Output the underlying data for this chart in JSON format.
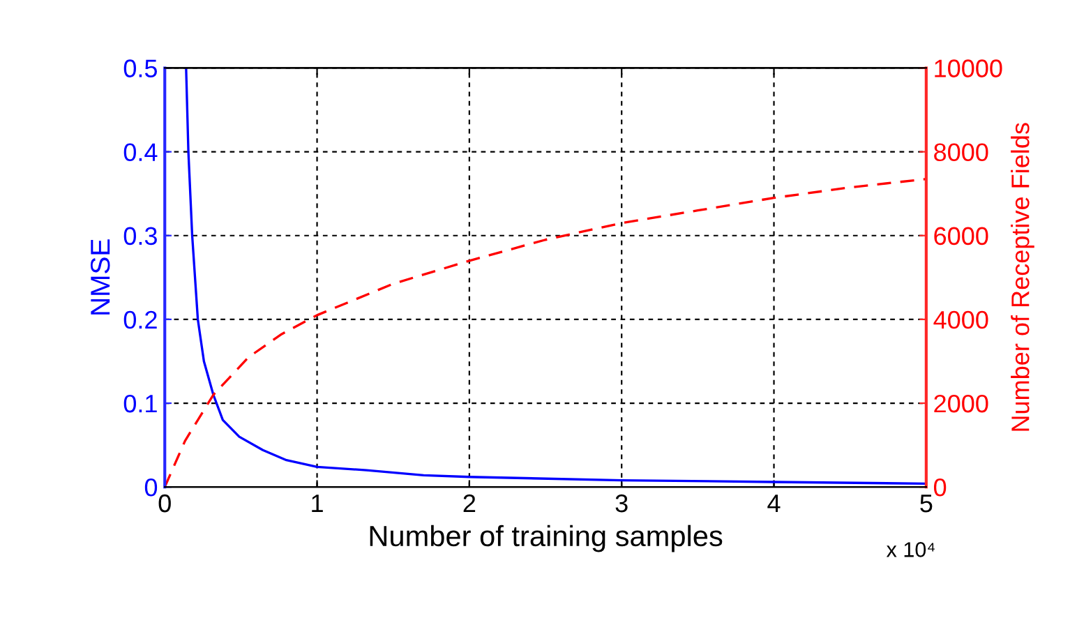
{
  "chart_data": {
    "type": "line",
    "xlabel": "Number of training samples",
    "ylabel": "NMSE",
    "y2label": "Number of Receptive Fields",
    "xlim": [
      0,
      5
    ],
    "xticks": [
      0,
      1,
      2,
      3,
      4,
      5
    ],
    "ylim": [
      0,
      0.5
    ],
    "yticks": [
      0,
      0.1,
      0.2,
      0.3,
      0.4,
      0.5
    ],
    "y2lim": [
      0,
      10000
    ],
    "y2ticks": [
      0,
      2000,
      4000,
      6000,
      8000,
      10000
    ],
    "grid": true,
    "line_style": "solid",
    "annotations": [
      "x 10⁴"
    ],
    "series": [
      {
        "color": "#0000ff",
        "x": [
          0.14,
          0.155,
          0.18,
          0.217,
          0.257,
          0.319,
          0.381,
          0.489,
          0.644,
          0.799,
          1.0,
          1.325,
          1.7,
          2.0,
          3.0,
          4.0,
          5.0
        ],
        "values": [
          0.5,
          0.4,
          0.3,
          0.2,
          0.15,
          0.11,
          0.08,
          0.06,
          0.044,
          0.032,
          0.024,
          0.02,
          0.014,
          0.012,
          0.008,
          0.006,
          0.004
        ]
      },
      {
        "color": "#ff0000",
        "axis": "y2",
        "line_style": "dashed",
        "x": [
          0,
          0.133,
          0.319,
          0.551,
          0.768,
          1.0,
          1.5,
          2.0,
          2.5,
          3.0,
          3.5,
          4.0,
          4.5,
          5.0
        ],
        "values": [
          0,
          1100,
          2200,
          3100,
          3650,
          4100,
          4850,
          5400,
          5900,
          6300,
          6600,
          6900,
          7150,
          7350
        ]
      }
    ]
  }
}
